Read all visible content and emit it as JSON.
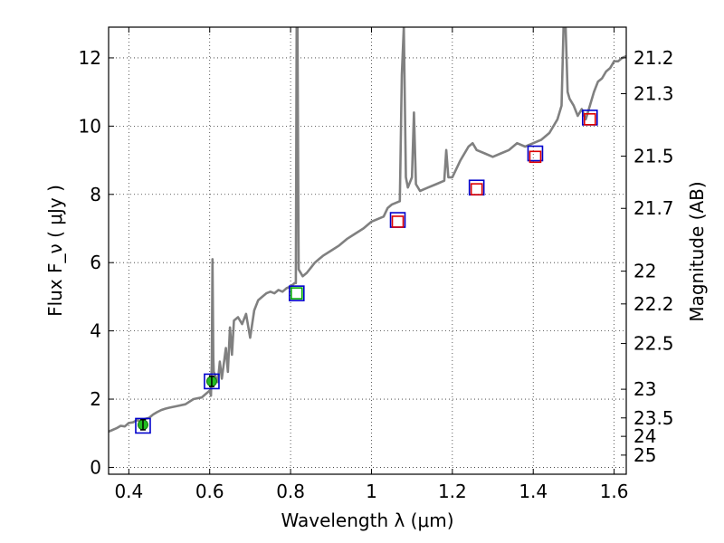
{
  "chart_data": {
    "type": "line",
    "title": "",
    "xlabel": "Wavelength  λ (μm)",
    "ylabel": "Flux  F_ν  ( μJy )",
    "ylabel_right": "Magnitude (AB)",
    "xlim": [
      0.35,
      1.63
    ],
    "ylim": [
      -0.2,
      12.9
    ],
    "grid": true,
    "x_ticks": [
      0.4,
      0.6,
      0.8,
      1.0,
      1.2,
      1.4,
      1.6
    ],
    "x_tick_labels": [
      "0.4",
      "0.6",
      "0.8",
      "1",
      "1.2",
      "1.4",
      "1.6"
    ],
    "y_ticks": [
      0,
      2,
      4,
      6,
      8,
      10,
      12
    ],
    "y_tick_labels": [
      "0",
      "2",
      "4",
      "6",
      "8",
      "10",
      "12"
    ],
    "mag_ticks": [
      {
        "label": "21.2",
        "flux": 12.0
      },
      {
        "label": "21.3",
        "flux": 10.95
      },
      {
        "label": "21.5",
        "flux": 9.12
      },
      {
        "label": "21.7",
        "flux": 7.59
      },
      {
        "label": "22",
        "flux": 5.75
      },
      {
        "label": "22.2",
        "flux": 4.79
      },
      {
        "label": "22.5",
        "flux": 3.63
      },
      {
        "label": "23",
        "flux": 2.29
      },
      {
        "label": "23.5",
        "flux": 1.45
      },
      {
        "label": "24",
        "flux": 0.91
      },
      {
        "label": "25",
        "flux": 0.36
      }
    ],
    "series": [
      {
        "name": "model spectrum",
        "color": "#808080",
        "points": [
          [
            0.35,
            1.05
          ],
          [
            0.36,
            1.1
          ],
          [
            0.37,
            1.15
          ],
          [
            0.38,
            1.22
          ],
          [
            0.39,
            1.2
          ],
          [
            0.4,
            1.3
          ],
          [
            0.41,
            1.32
          ],
          [
            0.42,
            1.38
          ],
          [
            0.43,
            1.36
          ],
          [
            0.44,
            1.42
          ],
          [
            0.45,
            1.45
          ],
          [
            0.46,
            1.55
          ],
          [
            0.47,
            1.62
          ],
          [
            0.48,
            1.68
          ],
          [
            0.49,
            1.72
          ],
          [
            0.5,
            1.75
          ],
          [
            0.52,
            1.8
          ],
          [
            0.54,
            1.85
          ],
          [
            0.56,
            2.0
          ],
          [
            0.58,
            2.05
          ],
          [
            0.59,
            2.15
          ],
          [
            0.6,
            2.25
          ],
          [
            0.603,
            2.1
          ],
          [
            0.605,
            3.0
          ],
          [
            0.607,
            6.1
          ],
          [
            0.609,
            3.2
          ],
          [
            0.61,
            2.8
          ],
          [
            0.62,
            2.5
          ],
          [
            0.625,
            3.1
          ],
          [
            0.63,
            2.6
          ],
          [
            0.64,
            3.5
          ],
          [
            0.645,
            2.8
          ],
          [
            0.65,
            4.1
          ],
          [
            0.655,
            3.3
          ],
          [
            0.66,
            4.3
          ],
          [
            0.67,
            4.4
          ],
          [
            0.68,
            4.2
          ],
          [
            0.69,
            4.5
          ],
          [
            0.7,
            3.8
          ],
          [
            0.71,
            4.6
          ],
          [
            0.72,
            4.9
          ],
          [
            0.73,
            5.0
          ],
          [
            0.74,
            5.1
          ],
          [
            0.75,
            5.15
          ],
          [
            0.76,
            5.1
          ],
          [
            0.77,
            5.2
          ],
          [
            0.78,
            5.15
          ],
          [
            0.79,
            5.25
          ],
          [
            0.8,
            5.3
          ],
          [
            0.81,
            5.4
          ],
          [
            0.813,
            5.4
          ],
          [
            0.815,
            12.9
          ],
          [
            0.817,
            12.9
          ],
          [
            0.82,
            5.8
          ],
          [
            0.83,
            5.6
          ],
          [
            0.84,
            5.7
          ],
          [
            0.85,
            5.85
          ],
          [
            0.86,
            6.0
          ],
          [
            0.87,
            6.1
          ],
          [
            0.88,
            6.2
          ],
          [
            0.9,
            6.35
          ],
          [
            0.92,
            6.5
          ],
          [
            0.94,
            6.7
          ],
          [
            0.96,
            6.85
          ],
          [
            0.98,
            7.0
          ],
          [
            1.0,
            7.2
          ],
          [
            1.02,
            7.3
          ],
          [
            1.03,
            7.35
          ],
          [
            1.04,
            7.6
          ],
          [
            1.05,
            7.7
          ],
          [
            1.06,
            7.75
          ],
          [
            1.07,
            7.8
          ],
          [
            1.075,
            11.5
          ],
          [
            1.08,
            12.9
          ],
          [
            1.085,
            8.5
          ],
          [
            1.09,
            8.2
          ],
          [
            1.1,
            8.5
          ],
          [
            1.105,
            10.4
          ],
          [
            1.11,
            8.3
          ],
          [
            1.12,
            8.1
          ],
          [
            1.14,
            8.2
          ],
          [
            1.16,
            8.3
          ],
          [
            1.18,
            8.4
          ],
          [
            1.185,
            9.3
          ],
          [
            1.19,
            8.5
          ],
          [
            1.2,
            8.5
          ],
          [
            1.22,
            9.0
          ],
          [
            1.24,
            9.4
          ],
          [
            1.25,
            9.5
          ],
          [
            1.26,
            9.3
          ],
          [
            1.28,
            9.2
          ],
          [
            1.3,
            9.1
          ],
          [
            1.32,
            9.2
          ],
          [
            1.34,
            9.3
          ],
          [
            1.36,
            9.5
          ],
          [
            1.38,
            9.4
          ],
          [
            1.4,
            9.5
          ],
          [
            1.42,
            9.6
          ],
          [
            1.44,
            9.8
          ],
          [
            1.46,
            10.2
          ],
          [
            1.47,
            10.6
          ],
          [
            1.475,
            12.9
          ],
          [
            1.48,
            12.9
          ],
          [
            1.485,
            11.0
          ],
          [
            1.49,
            10.8
          ],
          [
            1.5,
            10.6
          ],
          [
            1.51,
            10.3
          ],
          [
            1.52,
            10.5
          ],
          [
            1.53,
            10.2
          ],
          [
            1.54,
            10.6
          ],
          [
            1.55,
            11.0
          ],
          [
            1.56,
            11.3
          ],
          [
            1.57,
            11.4
          ],
          [
            1.58,
            11.6
          ],
          [
            1.59,
            11.7
          ],
          [
            1.6,
            11.9
          ],
          [
            1.61,
            11.9
          ],
          [
            1.62,
            12.0
          ],
          [
            1.63,
            12.05
          ]
        ]
      }
    ],
    "markers": [
      {
        "name": "blue squares",
        "shape": "square",
        "color": "#0000cc",
        "points": [
          [
            0.435,
            1.22
          ],
          [
            0.605,
            2.52
          ],
          [
            0.815,
            5.1
          ],
          [
            1.065,
            7.25
          ],
          [
            1.26,
            8.2
          ],
          [
            1.405,
            9.2
          ],
          [
            1.54,
            10.25
          ]
        ]
      },
      {
        "name": "red squares",
        "shape": "square",
        "color": "#dd0000",
        "points": [
          [
            1.065,
            7.2
          ],
          [
            1.26,
            8.15
          ],
          [
            1.405,
            9.1
          ],
          [
            1.54,
            10.2
          ]
        ]
      },
      {
        "name": "green squares",
        "shape": "square",
        "color": "#00aa00",
        "points": [
          [
            0.815,
            5.1
          ]
        ]
      },
      {
        "name": "green data points",
        "shape": "circle",
        "color": "#22bb22",
        "points": [
          [
            0.435,
            1.25
          ],
          [
            0.605,
            2.52
          ]
        ],
        "errors": [
          0.15,
          0.15
        ]
      }
    ]
  }
}
